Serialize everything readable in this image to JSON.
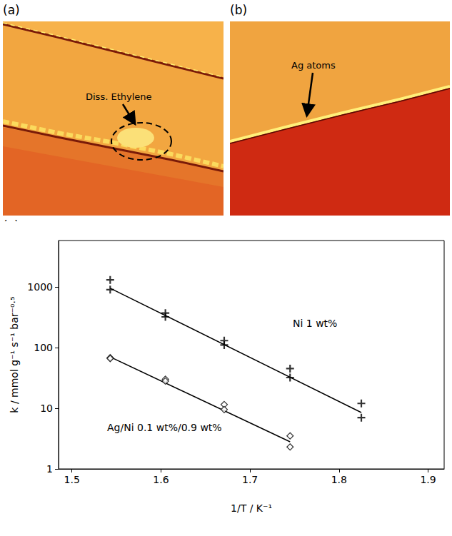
{
  "panels": [
    {
      "label": "(a)",
      "annotation": "Diss. Ethylene"
    },
    {
      "label": "(b)",
      "annotation": "Ag atoms"
    },
    {
      "label": "(c)"
    }
  ],
  "chart_data": {
    "type": "scatter",
    "x_label": "1/T / K⁻¹",
    "y_label": "k / mmol g⁻¹ s⁻¹ bar⁻⁰·⁵",
    "xlim": [
      1.485,
      1.918
    ],
    "xticks": [
      1.5,
      1.6,
      1.7,
      1.8,
      1.9
    ],
    "ylim": [
      1,
      5800
    ],
    "yticks": [
      1,
      10,
      100,
      1000
    ],
    "log": "y",
    "grid": false,
    "series": [
      {
        "name": "Ni 1 wt%",
        "marker": "plus",
        "color": "#000000",
        "x": [
          1.543,
          1.543,
          1.605,
          1.605,
          1.671,
          1.671,
          1.745,
          1.745,
          1.825,
          1.825
        ],
        "values": [
          1300,
          900,
          370,
          320,
          130,
          110,
          45,
          32,
          12,
          7
        ]
      },
      {
        "name": "Ag/Ni 0.1 wt%/0.9 wt%",
        "marker": "diamond",
        "color": "#000000",
        "x": [
          1.543,
          1.543,
          1.605,
          1.605,
          1.671,
          1.671,
          1.745,
          1.745
        ],
        "values": [
          68,
          66,
          30,
          28,
          11.5,
          9.5,
          3.5,
          2.3
        ]
      },
      {
        "type": "line",
        "color": "#000000",
        "x": [
          1.543,
          1.825
        ],
        "values": [
          950,
          8.5
        ]
      },
      {
        "type": "line",
        "color": "#000000",
        "x": [
          1.543,
          1.745
        ],
        "values": [
          70,
          2.8
        ]
      }
    ]
  }
}
